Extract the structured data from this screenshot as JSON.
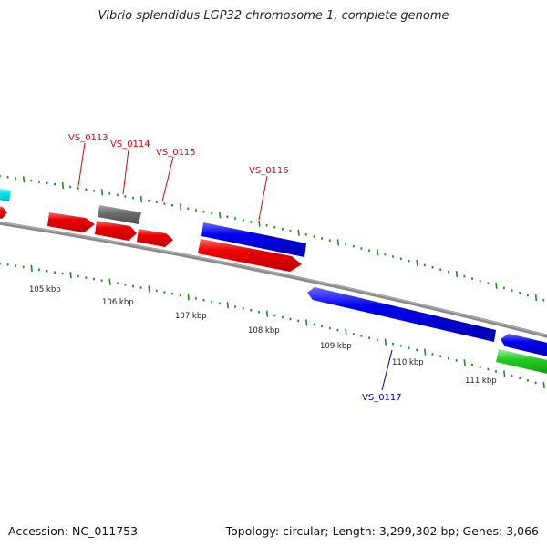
{
  "title": "Vibrio splendidus LGP32 chromosome 1, complete genome",
  "accession": "Accession: NC_011753",
  "summary": "Topology: circular; Length: 3,299,302 bp; Genes: 3,066",
  "colors": {
    "red": "#ee0000",
    "blue": "#0000ee",
    "gray": "#6e6e6e",
    "cyan": "#00e5ee",
    "green": "#22cc22",
    "backbone": "#8a8a8a",
    "tick": "#1e8c1e",
    "label_red": "#dd0000",
    "label_blue": "#0000bb"
  },
  "kbp_labels": [
    "105 kbp",
    "106 kbp",
    "107 kbp",
    "108 kbp",
    "109 kbp",
    "110 kbp",
    "111 kbp"
  ],
  "gene_labels": [
    {
      "name": "VS_0113",
      "color": "red"
    },
    {
      "name": "VS_0114",
      "color": "red"
    },
    {
      "name": "VS_0115",
      "color": "red"
    },
    {
      "name": "VS_0116",
      "color": "red"
    },
    {
      "name": "VS_0117",
      "color": "blue"
    }
  ]
}
